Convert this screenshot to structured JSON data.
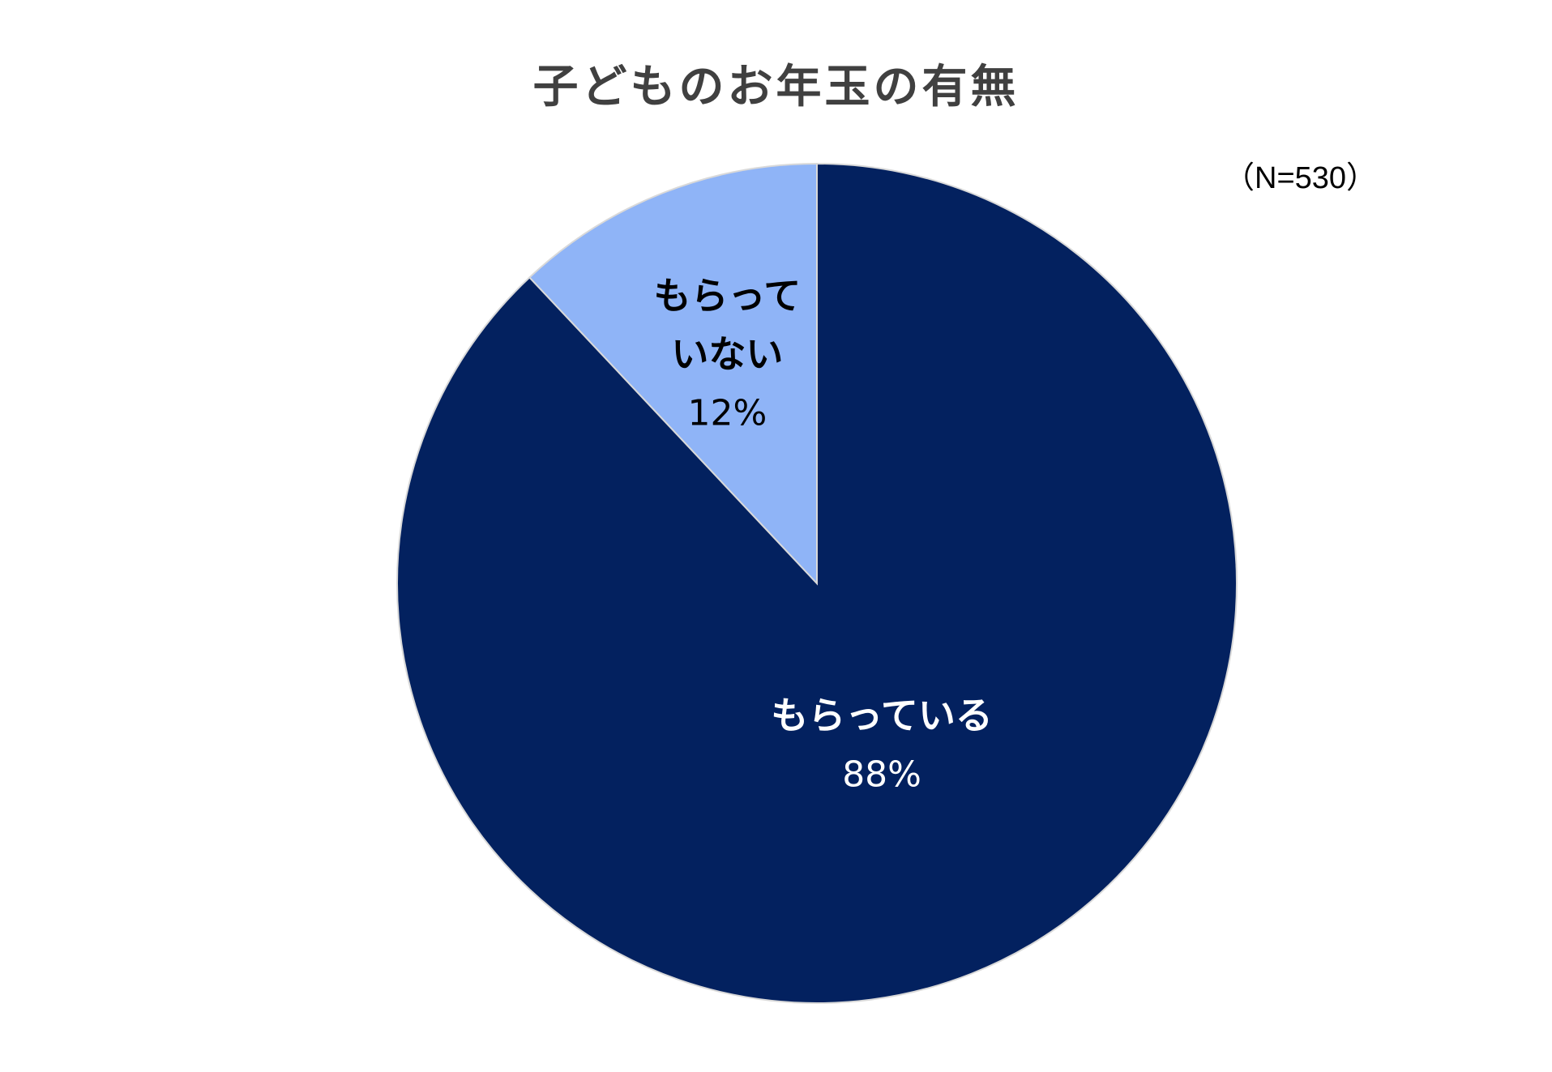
{
  "chart_data": {
    "type": "pie",
    "title": "子どものお年玉の有無",
    "note": "（N=530）",
    "start_angle_deg": 0,
    "direction": "clockwise",
    "slices": [
      {
        "name": "もらっている",
        "value": 88,
        "value_label": "88%",
        "label_lines": [
          "もらっている"
        ],
        "color": "#03215F",
        "text_color": "#FFFFFF"
      },
      {
        "name": "もらっていない",
        "value": 12,
        "value_label": "12%",
        "label_lines": [
          "もらって",
          "いない"
        ],
        "color": "#8FB4F7",
        "text_color": "#000000"
      }
    ]
  }
}
